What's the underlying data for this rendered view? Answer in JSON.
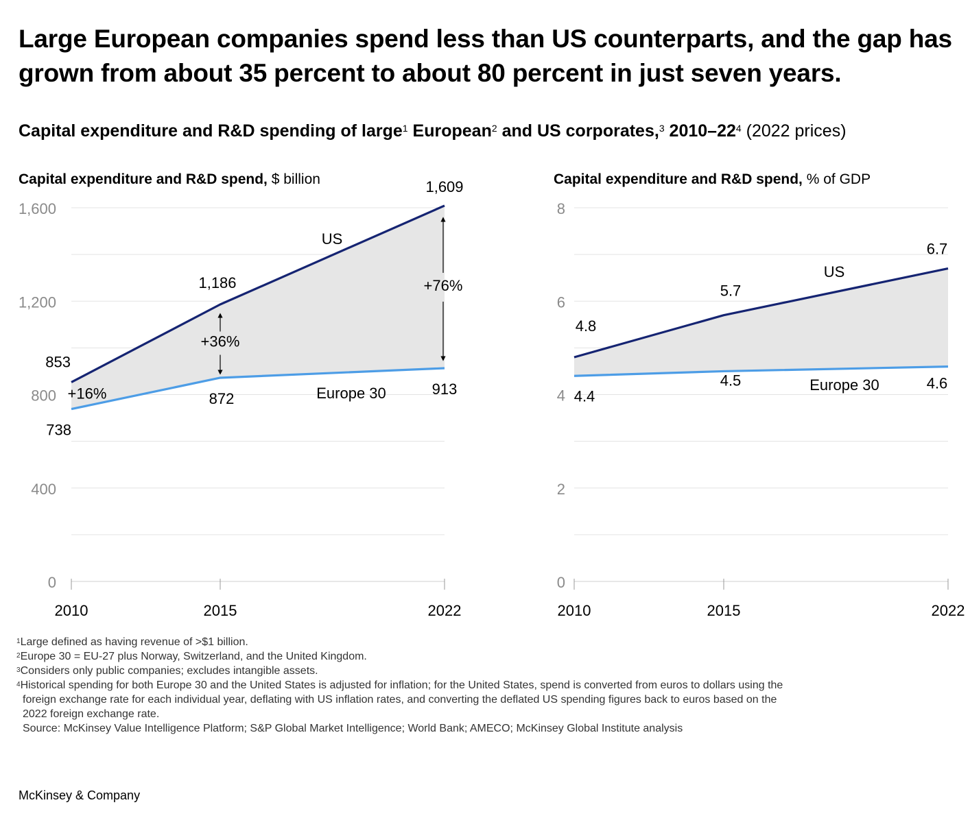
{
  "headline": "Large European companies spend less than US counterparts, and the gap has grown from about 35 percent to about 80 percent in just seven years.",
  "subtitle": {
    "bold_a": "Capital expenditure and R&D spending of large",
    "sup1": "1",
    "bold_b": " European",
    "sup2": "2",
    "bold_c": " and US corporates,",
    "sup3": "3",
    "bold_d": " 2010–22",
    "sup4": "4",
    "normal": " (2022 prices)"
  },
  "chart_data": [
    {
      "type": "area",
      "title_bold": "Capital expenditure and R&D spend,",
      "title_unit": " $ billion",
      "x": [
        "2010",
        "2015",
        "2022"
      ],
      "ylim": [
        0,
        1600
      ],
      "yticks": [
        "0",
        "400",
        "800",
        "1,200",
        "1,600"
      ],
      "grid": true,
      "series": [
        {
          "name": "US",
          "values": [
            853,
            1186,
            1609
          ],
          "labels": [
            "853",
            "1,186",
            "1,609"
          ],
          "color": "#152472"
        },
        {
          "name": "Europe 30",
          "values": [
            738,
            872,
            913
          ],
          "labels": [
            "738",
            "872",
            "913"
          ],
          "color": "#4d9de6"
        }
      ],
      "gap_labels": [
        "+16%",
        "+36%",
        "+76%"
      ],
      "fill_color": "#e6e6e6"
    },
    {
      "type": "area",
      "title_bold": "Capital expenditure and R&D spend,",
      "title_unit": " % of GDP",
      "x": [
        "2010",
        "2015",
        "2022"
      ],
      "ylim": [
        0,
        8
      ],
      "yticks": [
        "0",
        "2",
        "4",
        "6",
        "8"
      ],
      "grid": true,
      "series": [
        {
          "name": "US",
          "values": [
            4.8,
            5.7,
            6.7
          ],
          "labels": [
            "4.8",
            "5.7",
            "6.7"
          ],
          "color": "#152472"
        },
        {
          "name": "Europe 30",
          "values": [
            4.4,
            4.5,
            4.6
          ],
          "labels": [
            "4.4",
            "4.5",
            "4.6"
          ],
          "color": "#4d9de6"
        }
      ],
      "fill_color": "#e6e6e6"
    }
  ],
  "footnotes": {
    "f1_sup": "1",
    "f1": "Large defined as having revenue of >$1 billion.",
    "f2_sup": "2",
    "f2": "Europe 30 = EU-27 plus Norway, Switzerland, and the United Kingdom.",
    "f3_sup": "3",
    "f3": "Considers only public companies; excludes intangible assets.",
    "f4_sup": "4",
    "f4a": "Historical spending for both Europe 30 and the United States is adjusted for inflation; for the United States, spend is converted from euros to dollars using the",
    "f4b": "foreign exchange rate for each individual year, deflating with US inflation rates, and converting the deflated US spending figures back to euros based on the",
    "f4c": "2022 foreign exchange rate.",
    "source": "Source: McKinsey Value Intelligence Platform; S&P Global Market Intelligence; World Bank; AMECO; McKinsey Global Institute analysis"
  },
  "brand": "McKinsey & Company"
}
